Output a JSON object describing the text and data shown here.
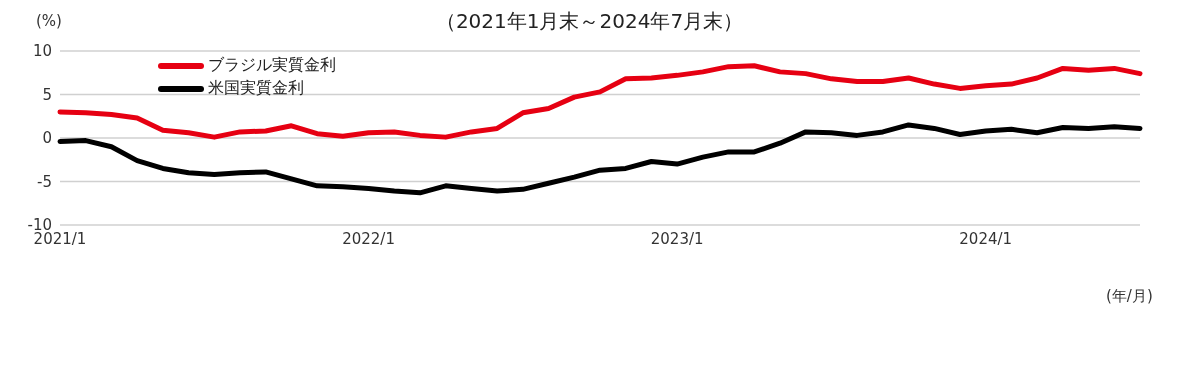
{
  "chart_data": {
    "type": "line",
    "title": "（2021年1月末～2024年7月末）",
    "ylabel": "(%)",
    "xlabel": "(年/月)",
    "categories": [
      "2021/1",
      null,
      null,
      null,
      null,
      null,
      null,
      null,
      null,
      null,
      null,
      null,
      "2022/1",
      null,
      null,
      null,
      null,
      null,
      null,
      null,
      null,
      null,
      null,
      null,
      "2023/1",
      null,
      null,
      null,
      null,
      null,
      null,
      null,
      null,
      null,
      null,
      null,
      "2024/1",
      null,
      null,
      null,
      null,
      null,
      null
    ],
    "series": [
      {
        "name": "ブラジル実質金利",
        "color": "#e60012",
        "values": [
          3.0,
          2.9,
          2.7,
          2.3,
          0.9,
          0.6,
          0.1,
          0.7,
          0.8,
          1.4,
          0.5,
          0.2,
          0.6,
          0.7,
          0.3,
          0.1,
          0.7,
          1.1,
          2.9,
          3.4,
          4.7,
          5.3,
          6.8,
          6.9,
          7.2,
          7.6,
          8.2,
          8.3,
          7.6,
          7.4,
          6.8,
          6.5,
          6.5,
          6.9,
          6.2,
          5.7,
          6.0,
          6.2,
          6.9,
          8.0,
          7.8,
          8.0,
          7.4
        ]
      },
      {
        "name": "米国実質金利",
        "color": "#000000",
        "values": [
          -0.4,
          -0.3,
          -1.0,
          -2.6,
          -3.5,
          -4.0,
          -4.2,
          -4.0,
          -3.9,
          -4.7,
          -5.5,
          -5.6,
          -5.8,
          -6.1,
          -6.3,
          -5.5,
          -5.8,
          -6.1,
          -5.9,
          -5.2,
          -4.5,
          -3.7,
          -3.5,
          -2.7,
          -3.0,
          -2.2,
          -1.6,
          -1.6,
          -0.6,
          0.7,
          0.6,
          0.3,
          0.7,
          1.5,
          1.1,
          0.4,
          0.8,
          1.0,
          0.6,
          1.2,
          1.1,
          1.3,
          1.1
        ]
      }
    ],
    "ylim": [
      -10,
      10
    ],
    "yticks": [
      10,
      5,
      0,
      -5,
      -10
    ],
    "grid": "y",
    "legend": "top left",
    "marker": "none",
    "line_style": "solid"
  }
}
